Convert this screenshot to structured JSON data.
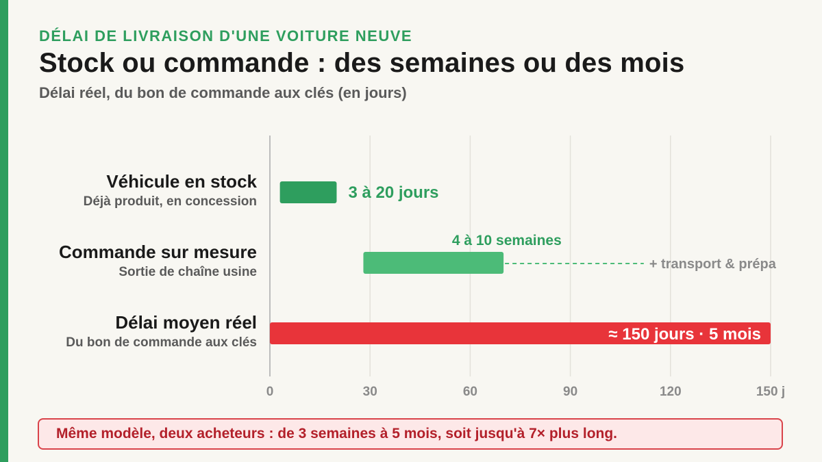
{
  "header": {
    "kicker": "DÉLAI DE LIVRAISON D'UNE VOITURE NEUVE",
    "title": "Stock ou commande : des semaines ou des mois",
    "subtitle": "Délai réel, du bon de commande aux clés (en jours)"
  },
  "chart_data": {
    "type": "bar",
    "orientation": "horizontal",
    "xlim": [
      0,
      150
    ],
    "x_ticks": [
      0,
      30,
      60,
      90,
      120,
      150
    ],
    "x_tick_labels": [
      "0",
      "30",
      "60",
      "90",
      "120",
      "150 j"
    ],
    "grid": true,
    "bars": [
      {
        "label": "Véhicule en stock",
        "sublabel": "Déjà produit, en concession",
        "start": 3,
        "end": 20,
        "value_label": "3 à 20 jours",
        "color": "#2e9e5e",
        "label_color": "#2e9e5e"
      },
      {
        "label": "Commande sur mesure",
        "sublabel": "Sortie de chaîne usine",
        "start": 28,
        "end": 70,
        "value_label": "4 à 10 semaines",
        "color": "#4cbb78",
        "label_color": "#2e9e5e",
        "extension_end": 112,
        "extension_label": "+ transport & prépa",
        "extension_label_color": "#8a8a8a"
      },
      {
        "label": "Délai moyen réel",
        "sublabel": "Du bon de commande aux clés",
        "start": 0,
        "end": 150,
        "value_label": "≈ 150 jours · 5 mois",
        "color": "#e8343a",
        "label_color": "#ffffff"
      }
    ]
  },
  "callout": {
    "text": "Même modèle, deux acheteurs : de 3 semaines à 5 mois, soit jusqu'à 7× plus long."
  }
}
